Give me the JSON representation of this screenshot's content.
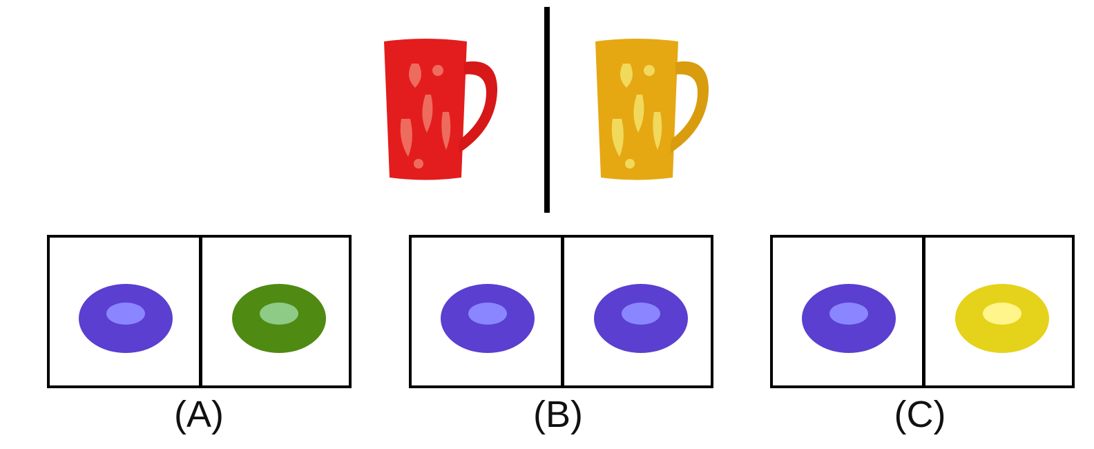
{
  "prompt_pair": {
    "source_object": "mug",
    "source_color": "#e02020",
    "target_object": "mug",
    "target_color": "#e8aa10"
  },
  "options": [
    {
      "label": "(A)",
      "left_color": "#5a3fd0",
      "right_color": "#4f8a12"
    },
    {
      "label": "(B)",
      "left_color": "#5a3fd0",
      "right_color": "#5a3fd0"
    },
    {
      "label": "(C)",
      "left_color": "#5a3fd0",
      "right_color": "#e5d21a"
    }
  ]
}
